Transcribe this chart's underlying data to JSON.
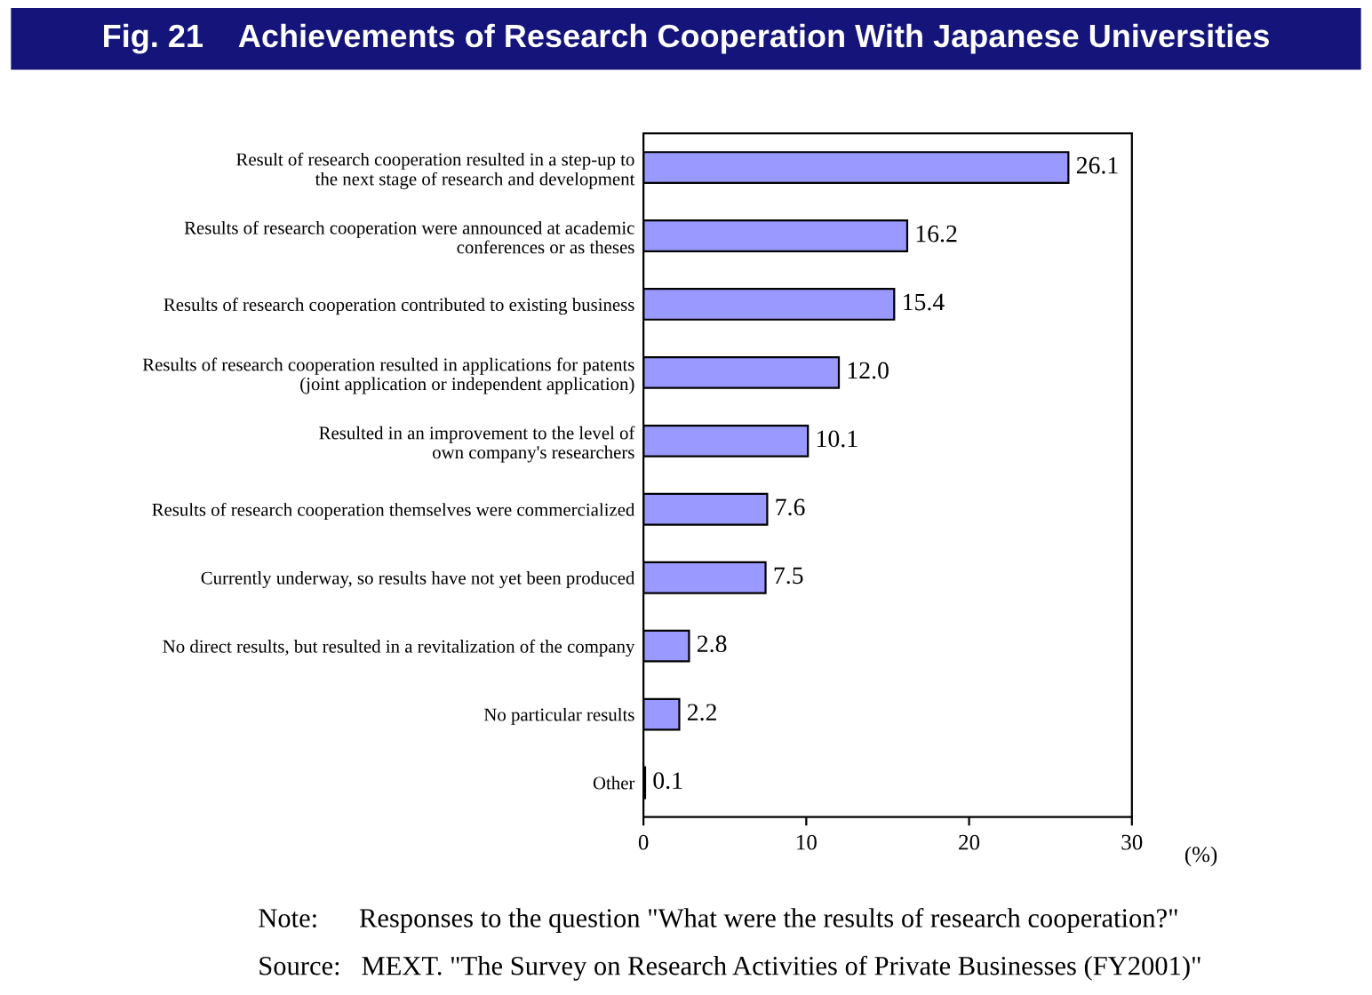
{
  "chart_data": {
    "type": "bar",
    "orientation": "horizontal",
    "title": "Fig. 21    Achievements of Research Cooperation With Japanese Universities",
    "categories": [
      "Result of research cooperation resulted in a step-up to\nthe next stage of research and development",
      "Results of research cooperation were announced at academic\nconferences or as theses",
      "Results of research cooperation contributed to existing business",
      "Results of research cooperation resulted in applications for patents\n(joint application or independent application)",
      "Resulted in an improvement to the level of\nown company's researchers",
      "Results of research cooperation themselves were commercialized",
      "Currently underway, so results have not yet been produced",
      "No direct results, but resulted in a revitalization of the company",
      "No particular results",
      "Other"
    ],
    "values": [
      26.1,
      16.2,
      15.4,
      12.0,
      10.1,
      7.6,
      7.5,
      2.8,
      2.2,
      0.1
    ],
    "value_labels": [
      "26.1",
      "16.2",
      "15.4",
      "12.0",
      "10.1",
      "7.6",
      "7.5",
      "2.8",
      "2.2",
      "0.1"
    ],
    "color": "#9999ff",
    "xlim": [
      0,
      30
    ],
    "xticks": [
      0,
      10,
      20,
      30
    ],
    "xlabel": "(%)",
    "grid": false,
    "legend": false,
    "annotations": [
      "Note:      Responses to the question \"What were the results of research cooperation?\"",
      "Source:   MEXT. \"The Survey on Research Activities of Private Businesses (FY2001)\""
    ]
  }
}
